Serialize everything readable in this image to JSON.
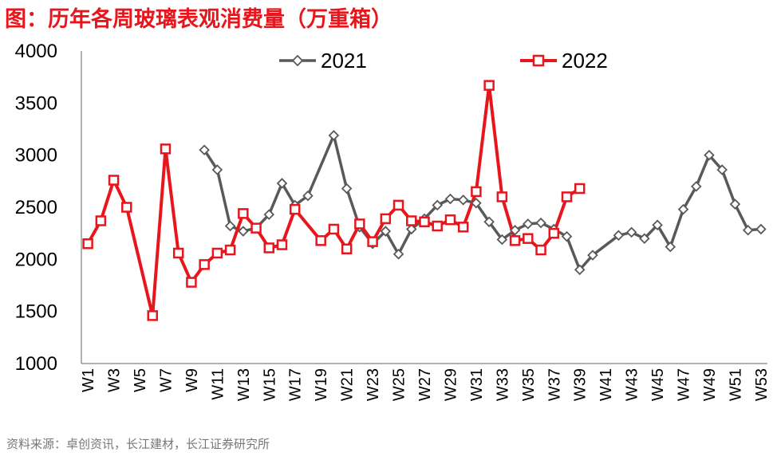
{
  "title": "图：历年各周玻璃表观消费量（万重箱）",
  "source": "资料来源：卓创资讯，长江建材，长江证券研究所",
  "chart_data": {
    "type": "line",
    "yticks": [
      1000,
      1500,
      2000,
      2500,
      3000,
      3500,
      4000
    ],
    "ylim": [
      1000,
      4000
    ],
    "xtick_labels": [
      "W1",
      "W3",
      "W5",
      "W7",
      "W9",
      "W11",
      "W13",
      "W15",
      "W17",
      "W19",
      "W21",
      "W23",
      "W25",
      "W27",
      "W29",
      "W31",
      "W33",
      "W35",
      "W37",
      "W39",
      "W41",
      "W43",
      "W45",
      "W47",
      "W49",
      "W51",
      "W53"
    ],
    "legend_position": "top",
    "series": [
      {
        "name": "2021",
        "color": "#595959",
        "marker": "diamond",
        "points": [
          [
            "W10",
            3050
          ],
          [
            "W11",
            2860
          ],
          [
            "W12",
            2320
          ],
          [
            "W13",
            2270
          ],
          [
            "W14",
            2300
          ],
          [
            "W15",
            2430
          ],
          [
            "W16",
            2730
          ],
          [
            "W17",
            2520
          ],
          [
            "W18",
            2610
          ],
          [
            "W20",
            3190
          ],
          [
            "W21",
            2680
          ],
          [
            "W22",
            2310
          ],
          [
            "W23",
            2150
          ],
          [
            "W24",
            2270
          ],
          [
            "W25",
            2050
          ],
          [
            "W26",
            2290
          ],
          [
            "W27",
            2390
          ],
          [
            "W28",
            2520
          ],
          [
            "W29",
            2580
          ],
          [
            "W30",
            2570
          ],
          [
            "W31",
            2540
          ],
          [
            "W32",
            2360
          ],
          [
            "W33",
            2190
          ],
          [
            "W34",
            2280
          ],
          [
            "W35",
            2340
          ],
          [
            "W36",
            2350
          ],
          [
            "W37",
            2290
          ],
          [
            "W38",
            2220
          ],
          [
            "W39",
            1900
          ],
          [
            "W40",
            2040
          ],
          [
            "W42",
            2230
          ],
          [
            "W43",
            2260
          ],
          [
            "W44",
            2200
          ],
          [
            "W45",
            2330
          ],
          [
            "W46",
            2120
          ],
          [
            "W47",
            2480
          ],
          [
            "W48",
            2700
          ],
          [
            "W49",
            3000
          ],
          [
            "W50",
            2860
          ],
          [
            "W51",
            2530
          ],
          [
            "W52",
            2280
          ],
          [
            "W53",
            2290
          ]
        ]
      },
      {
        "name": "2022",
        "color": "#e8161c",
        "marker": "square",
        "points": [
          [
            "W1",
            2150
          ],
          [
            "W2",
            2370
          ],
          [
            "W3",
            2760
          ],
          [
            "W4",
            2500
          ],
          [
            "W6",
            1460
          ],
          [
            "W7",
            3060
          ],
          [
            "W8",
            2060
          ],
          [
            "W9",
            1780
          ],
          [
            "W10",
            1950
          ],
          [
            "W11",
            2060
          ],
          [
            "W12",
            2090
          ],
          [
            "W13",
            2440
          ],
          [
            "W14",
            2300
          ],
          [
            "W15",
            2110
          ],
          [
            "W16",
            2140
          ],
          [
            "W17",
            2480
          ],
          [
            "W19",
            2180
          ],
          [
            "W20",
            2290
          ],
          [
            "W21",
            2100
          ],
          [
            "W22",
            2340
          ],
          [
            "W23",
            2170
          ],
          [
            "W24",
            2390
          ],
          [
            "W25",
            2520
          ],
          [
            "W26",
            2370
          ],
          [
            "W27",
            2360
          ],
          [
            "W28",
            2320
          ],
          [
            "W29",
            2380
          ],
          [
            "W30",
            2310
          ],
          [
            "W31",
            2650
          ],
          [
            "W32",
            3670
          ],
          [
            "W33",
            2600
          ],
          [
            "W34",
            2180
          ],
          [
            "W35",
            2200
          ],
          [
            "W36",
            2090
          ],
          [
            "W37",
            2250
          ],
          [
            "W38",
            2600
          ],
          [
            "W39",
            2680
          ]
        ]
      }
    ]
  }
}
